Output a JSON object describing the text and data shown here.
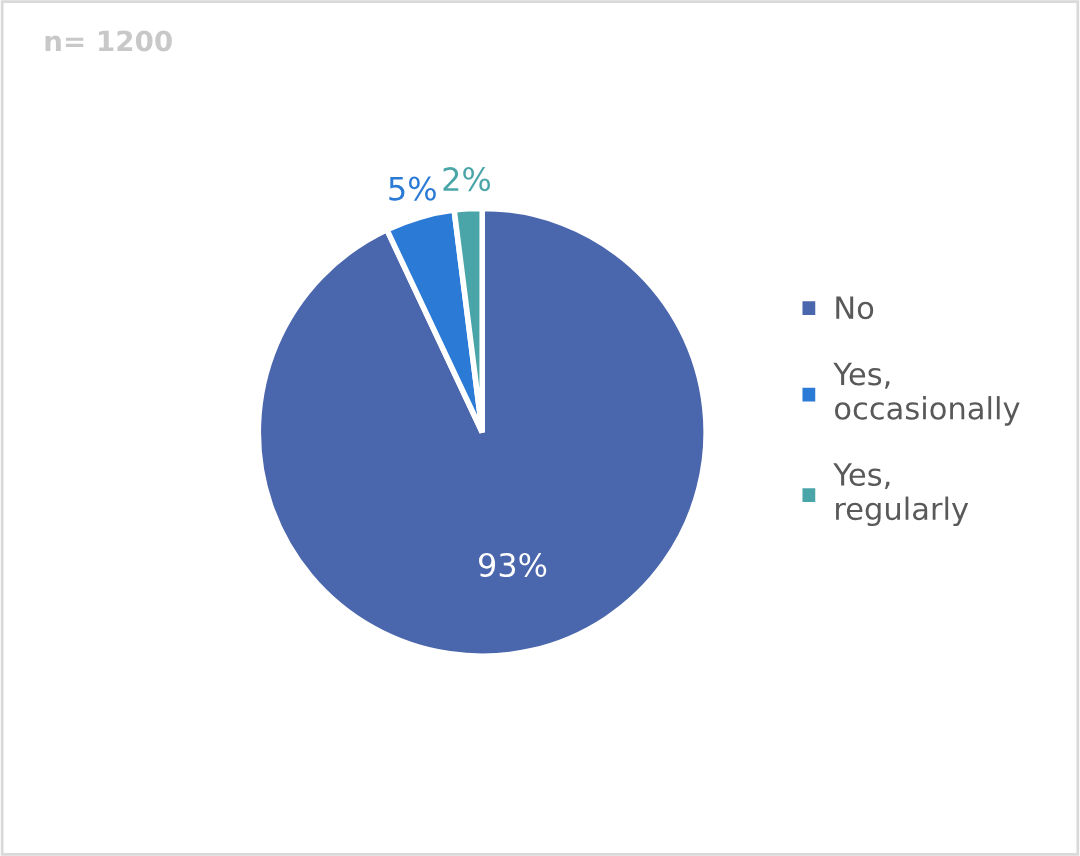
{
  "chart_data": {
    "type": "pie",
    "title": "n= 1200",
    "categories": [
      "No",
      "Yes,\noccasionally",
      "Yes,\nregularly"
    ],
    "values": [
      93,
      5,
      2
    ],
    "colors": [
      "#4a66ac",
      "#2b7bd6",
      "#4aa5a8"
    ],
    "value_labels": [
      "93%",
      "5%",
      "2%"
    ],
    "legend": "right"
  }
}
